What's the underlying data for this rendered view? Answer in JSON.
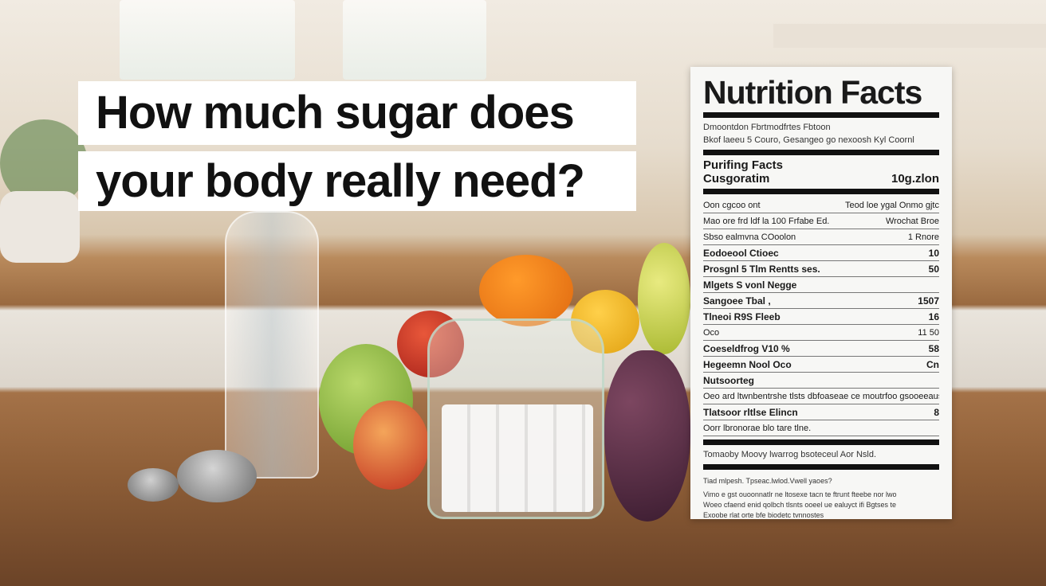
{
  "headline": {
    "line1": "How much sugar does",
    "line2": "your body really need?"
  },
  "label": {
    "title": "Nutrition Facts",
    "intro": [
      "Dmoontdon Fbrtmodfrtes Fbtoon",
      "Bkof laeeu 5 Couro, Gesangeo go nexoosh Kyl Coornl"
    ],
    "subhead": "Purifing Facts",
    "serving": {
      "label": "Cusgoratim",
      "value": "10g.zlon"
    },
    "rows": [
      {
        "label": "Oon cgcoo ont",
        "value": "Teod loe ygal Onmo gjtc",
        "bold": false
      },
      {
        "label": "Mao ore frd ldf la 100 Frfabe Ed.",
        "value": "Wrochat Broe",
        "bold": false
      },
      {
        "label": "Sbso ealmvna COoolon",
        "value": "1 Rnore",
        "bold": false
      },
      {
        "label": "Eodoeool  Ctioec",
        "value": "10",
        "bold": true
      },
      {
        "label": "Prosgnl 5 Tlm Rentts ses.",
        "value": "50",
        "bold": true
      },
      {
        "label": "Mlgets S vonl Negge",
        "value": "",
        "bold": true
      },
      {
        "label": "Sangoee Tbal ,",
        "value": "1507",
        "bold": true
      },
      {
        "label": "Tlneoi R9S Fleeb",
        "value": "16",
        "bold": true
      },
      {
        "label": "Oco",
        "value": "11 50",
        "bold": false
      },
      {
        "label": "Coeseldfrog V10 %",
        "value": "58",
        "bold": true
      },
      {
        "label": "Hegeemn Nool Oco",
        "value": "Cn",
        "bold": true
      },
      {
        "label": "Nutsoorteg",
        "value": "",
        "bold": true
      },
      {
        "label": "Oeo ard ltwnbentrshe tlsts dbfoaseae ce moutrfoo gsooeeaus vw.",
        "value": "",
        "bold": false
      },
      {
        "label": "Tlatsoor rltlse Elincn",
        "value": "8",
        "bold": true
      },
      {
        "label": "Oorr lbronorae blo tare tlne.",
        "value": "",
        "bold": false
      }
    ],
    "note": "Tomaoby Moovy lwarrog bsoteceul Aor Nsld.",
    "footer_q": "Tiad mlpesh. Tpseac.lwlod.Vwell yaoes?",
    "footer": [
      "Vimo e gst ouoonnatlr ne ltosexe tacn te ftrunt fteebe nor lwo",
      "Woeo cfaend enid qolbch tlsnts ooeel ue ealuyct ifi Bgtses te",
      "Exoobe rlat orte bfe biodetc tvnnostes"
    ]
  }
}
